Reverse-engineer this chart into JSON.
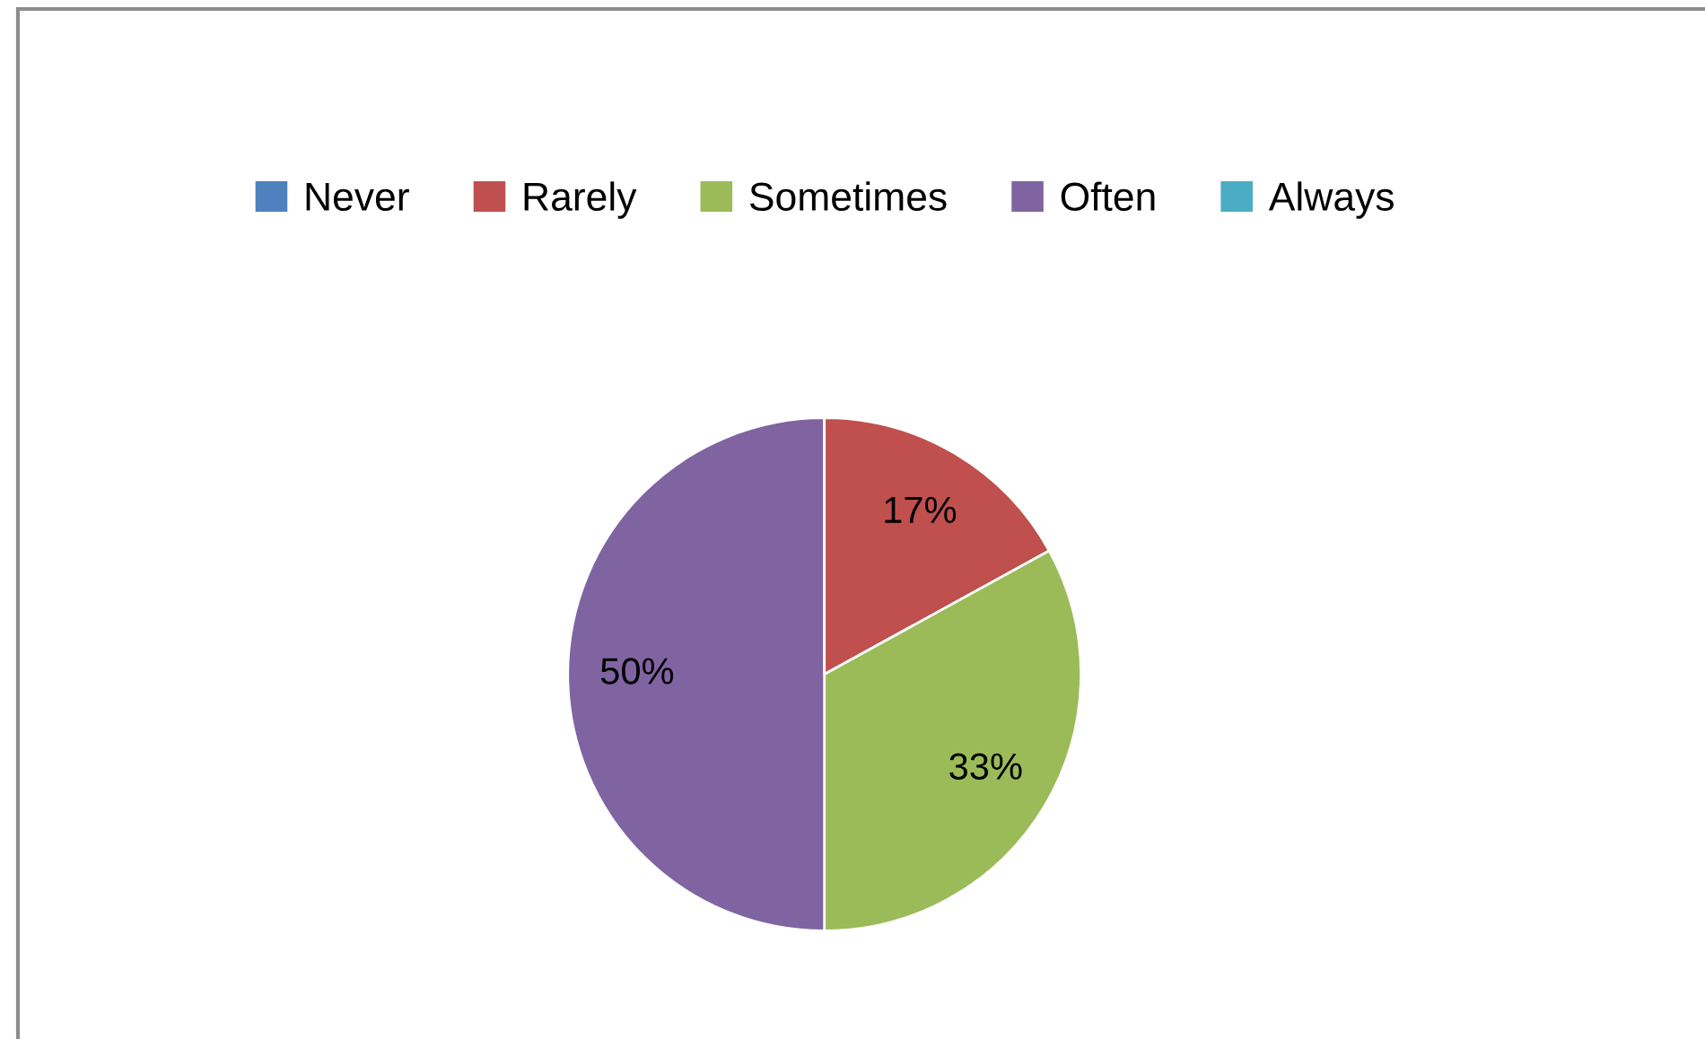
{
  "chart_data": {
    "type": "pie",
    "categories": [
      "Never",
      "Rarely",
      "Sometimes",
      "Often",
      "Always"
    ],
    "values": [
      0,
      17,
      33,
      50,
      0
    ],
    "colors": [
      "#4f81bd",
      "#c0504d",
      "#9bbb59",
      "#8064a2",
      "#4bacc6"
    ],
    "value_labels": [
      null,
      "17%",
      "33%",
      "50%",
      null
    ],
    "legend": "top"
  }
}
